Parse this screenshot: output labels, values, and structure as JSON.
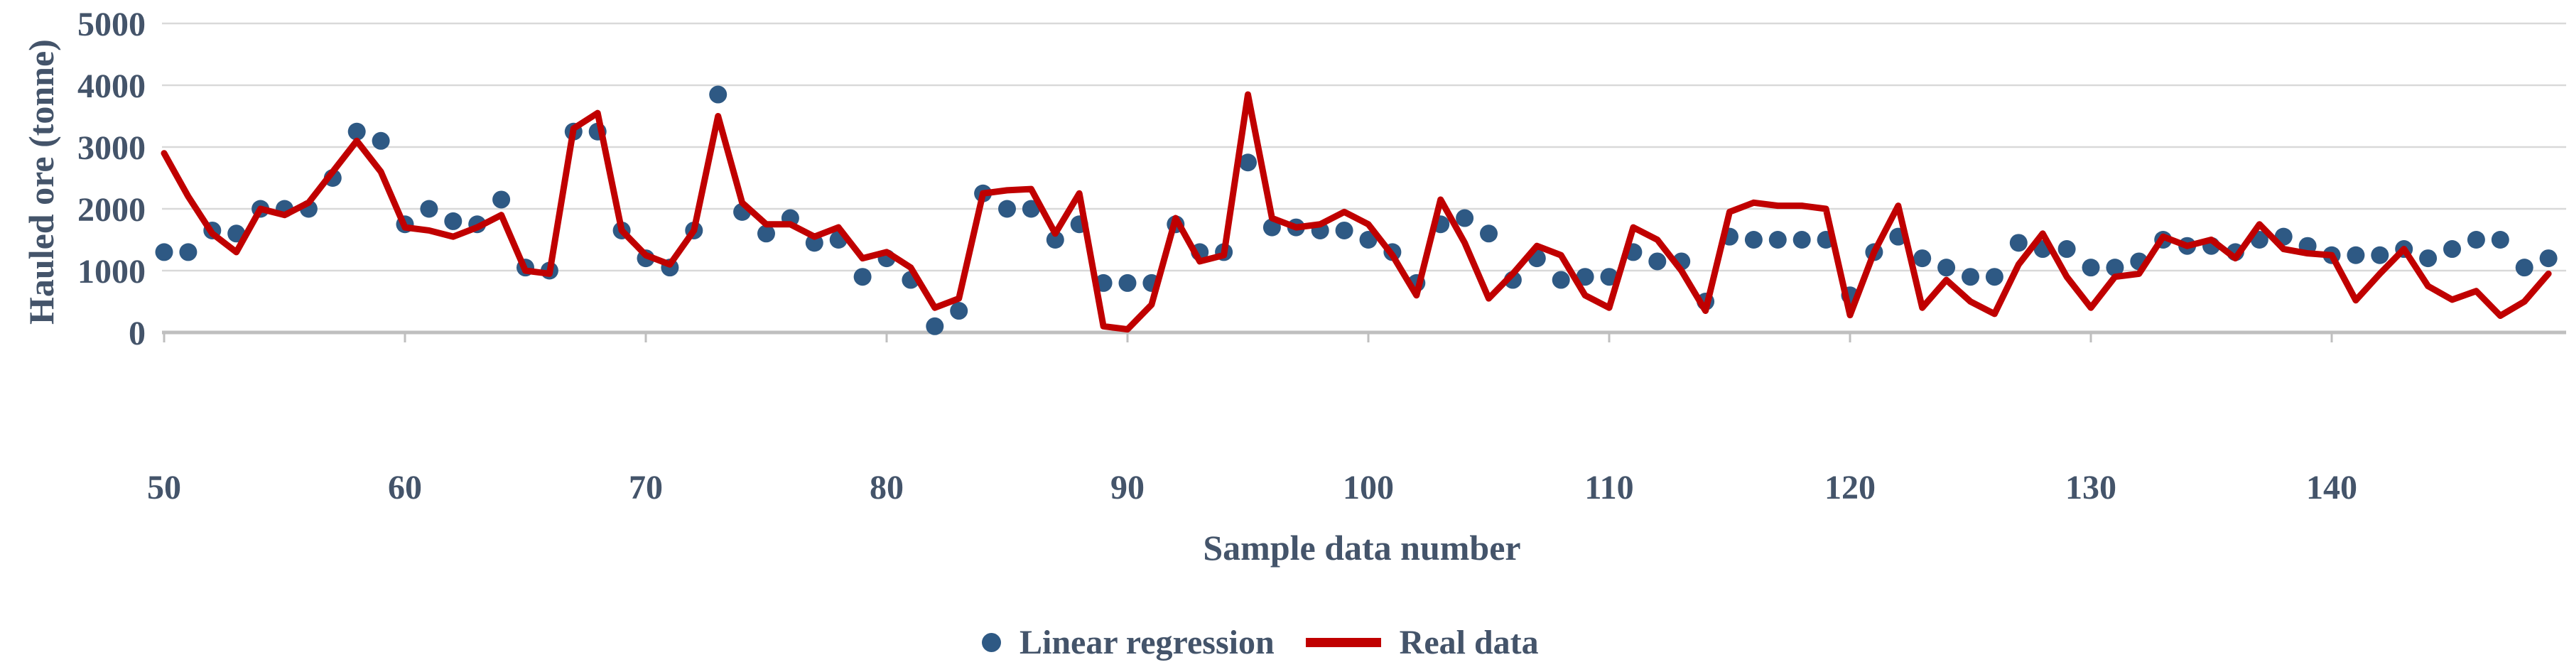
{
  "figure": {
    "y_axis_title": "Hauled ore (tonne)",
    "x_axis_title": "Sample data number",
    "legend": [
      {
        "label": "Linear regression",
        "marker": "dot-icon",
        "color": "#2E5984"
      },
      {
        "label": "Real data",
        "marker": "line-icon",
        "color": "#C00000"
      }
    ]
  },
  "chart_data": {
    "type": "line",
    "title": "",
    "xlabel": "Sample data number",
    "ylabel": "Hauled ore (tonne)",
    "xlim": [
      50,
      150
    ],
    "ylim": [
      0,
      5000
    ],
    "x_ticks": [
      50,
      60,
      70,
      80,
      90,
      100,
      110,
      120,
      130,
      140
    ],
    "y_ticks": [
      0,
      1000,
      2000,
      3000,
      4000,
      5000
    ],
    "grid": "horizontal",
    "legend_position": "bottom-center",
    "x_start": 50,
    "x_step": 1,
    "series": [
      {
        "name": "Linear regression",
        "type": "scatter",
        "color": "#2E5984",
        "values": [
          1300,
          1300,
          1650,
          1600,
          2000,
          2000,
          2000,
          2500,
          3250,
          3100,
          1750,
          2000,
          1800,
          1750,
          2150,
          1050,
          1000,
          3250,
          3250,
          1650,
          1200,
          1050,
          1650,
          3850,
          1950,
          1600,
          1850,
          1450,
          1500,
          900,
          1200,
          850,
          100,
          350,
          2250,
          2000,
          2000,
          1500,
          1750,
          800,
          800,
          800,
          1750,
          1300,
          1300,
          2750,
          1700,
          1700,
          1650,
          1650,
          1500,
          1300,
          800,
          1750,
          1850,
          1600,
          850,
          1200,
          850,
          900,
          900,
          1300,
          1150,
          1150,
          500,
          1550,
          1500,
          1500,
          1500,
          1500,
          600,
          1300,
          1550,
          1200,
          1050,
          900,
          900,
          1450,
          1350,
          1350,
          1050,
          1050,
          1150,
          1500,
          1400,
          1400,
          1300,
          1500,
          1550,
          1400,
          1250,
          1250,
          1250,
          1350,
          1200,
          1350,
          1500,
          1500,
          1050,
          1200
        ]
      },
      {
        "name": "Real data",
        "type": "line",
        "color": "#C00000",
        "values": [
          2900,
          2200,
          1600,
          1300,
          2000,
          1900,
          2100,
          2600,
          3100,
          2600,
          1700,
          1650,
          1550,
          1700,
          1900,
          1000,
          950,
          3300,
          3550,
          1650,
          1250,
          1100,
          1650,
          3500,
          2100,
          1750,
          1750,
          1550,
          1700,
          1200,
          1300,
          1050,
          400,
          550,
          2250,
          2300,
          2320,
          1600,
          2250,
          100,
          50,
          450,
          1850,
          1150,
          1250,
          3850,
          1850,
          1700,
          1750,
          1950,
          1750,
          1250,
          600,
          2150,
          1450,
          550,
          950,
          1400,
          1250,
          600,
          400,
          1700,
          1500,
          1000,
          350,
          1950,
          2100,
          2050,
          2050,
          2000,
          280,
          1300,
          2050,
          400,
          850,
          500,
          300,
          1100,
          1600,
          900,
          400,
          900,
          950,
          1550,
          1400,
          1500,
          1200,
          1750,
          1350,
          1280,
          1250,
          520,
          950,
          1350,
          750,
          530,
          670,
          270,
          500,
          950
        ]
      }
    ]
  },
  "style": {
    "background": "#ffffff",
    "grid_color": "#D9D9D9",
    "axis_line_color": "#BFBFBF",
    "tick_label_color": "#44546A",
    "title_color": "#44546A",
    "scatter_color": "#2E5984",
    "line_color": "#C00000"
  }
}
